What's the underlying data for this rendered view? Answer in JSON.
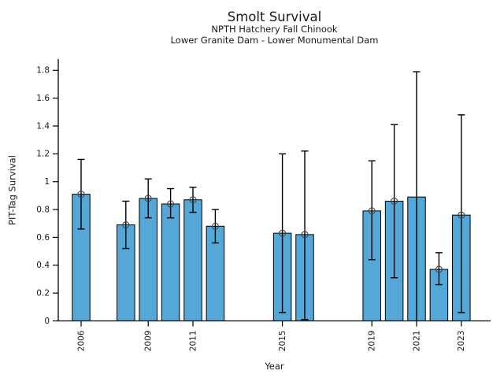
{
  "chart_data": {
    "type": "bar",
    "title": "Smolt Survival",
    "subtitle1": "NPTH Hatchery Fall Chinook",
    "subtitle2": "Lower Granite Dam - Lower Monumental Dam",
    "xlabel": "Year",
    "ylabel": "PIT-Tag Survival",
    "ylim": [
      0,
      1.88
    ],
    "grid": false,
    "legend": "none",
    "y_ticks": [
      "0",
      "0.2",
      "0.4",
      "0.6",
      "0.8",
      "1",
      "1.2",
      "1.4",
      "1.6",
      "1.8"
    ],
    "x_ticks": [
      "2006",
      "2009",
      "2011",
      "2015",
      "2019",
      "2021",
      "2023"
    ],
    "bar_color": "#54a7d7",
    "bar_edge_color": "#000000",
    "error_bar_color": "#000000",
    "marker_edge_color": "#444444",
    "points": [
      {
        "year": 2006,
        "value": 0.91,
        "err_low": 0.66,
        "err_high": 1.16,
        "marker": true
      },
      {
        "year": 2008,
        "value": 0.69,
        "err_low": 0.52,
        "err_high": 0.86,
        "marker": true
      },
      {
        "year": 2009,
        "value": 0.88,
        "err_low": 0.74,
        "err_high": 1.02,
        "marker": true
      },
      {
        "year": 2010,
        "value": 0.84,
        "err_low": 0.74,
        "err_high": 0.95,
        "marker": true
      },
      {
        "year": 2011,
        "value": 0.87,
        "err_low": 0.78,
        "err_high": 0.96,
        "marker": true
      },
      {
        "year": 2012,
        "value": 0.68,
        "err_low": 0.56,
        "err_high": 0.8,
        "marker": true
      },
      {
        "year": 2015,
        "value": 0.63,
        "err_low": 0.06,
        "err_high": 1.2,
        "marker": true
      },
      {
        "year": 2016,
        "value": 0.62,
        "err_low": 0.01,
        "err_high": 1.22,
        "marker": true
      },
      {
        "year": 2019,
        "value": 0.79,
        "err_low": 0.44,
        "err_high": 1.15,
        "marker": true
      },
      {
        "year": 2020,
        "value": 0.86,
        "err_low": 0.31,
        "err_high": 1.41,
        "marker": true
      },
      {
        "year": 2021,
        "value": 0.89,
        "err_low": 0.0,
        "err_high": 1.79,
        "marker": false,
        "cap_low": false
      },
      {
        "year": 2022,
        "value": 0.37,
        "err_low": 0.26,
        "err_high": 0.49,
        "marker": true
      },
      {
        "year": 2023,
        "value": 0.76,
        "err_low": 0.06,
        "err_high": 1.48,
        "marker": true
      }
    ]
  }
}
